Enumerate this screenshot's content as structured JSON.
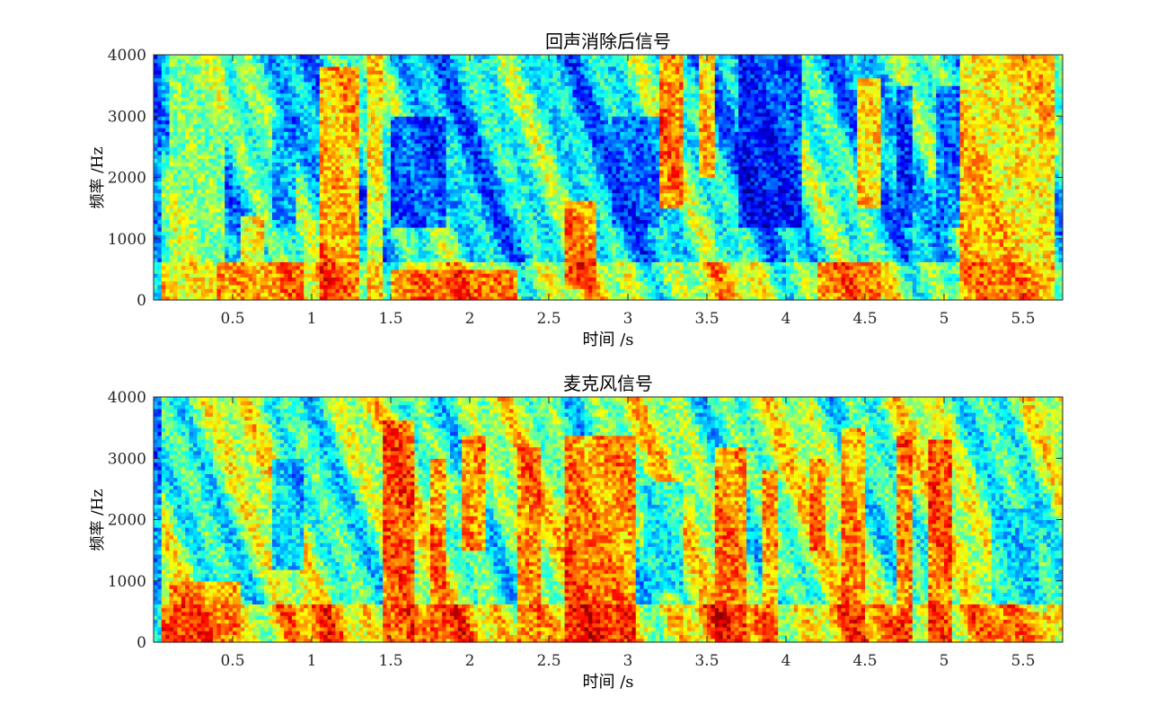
{
  "chart_data": [
    {
      "type": "heatmap",
      "title": "回声消除后信号",
      "xlabel": "时间 /s",
      "ylabel": "频率 /Hz",
      "xlim": [
        0.0,
        5.75
      ],
      "ylim": [
        0,
        4000
      ],
      "x_ticks": [
        0.5,
        1,
        1.5,
        2,
        2.5,
        3,
        3.5,
        4,
        4.5,
        5,
        5.5
      ],
      "x_tick_labels": [
        "0.5",
        "1",
        "1.5",
        "2",
        "2.5",
        "3",
        "3.5",
        "4",
        "4.5",
        "5",
        "5.5"
      ],
      "y_ticks": [
        0,
        1000,
        2000,
        3000,
        4000
      ],
      "y_tick_labels": [
        "0",
        "1000",
        "2000",
        "3000",
        "4000"
      ],
      "colormap": "jet",
      "energy_bands": [
        {
          "t0": 0.0,
          "t1": 0.05,
          "f0": 0,
          "f1": 4000,
          "level": 0.15
        },
        {
          "t0": 0.1,
          "t1": 0.45,
          "f0": 0,
          "f1": 4000,
          "level": 0.62
        },
        {
          "t0": 0.4,
          "t1": 0.95,
          "f0": 0,
          "f1": 600,
          "level": 0.85
        },
        {
          "t0": 0.55,
          "t1": 0.7,
          "f0": 600,
          "f1": 1400,
          "level": 0.8
        },
        {
          "t0": 0.75,
          "t1": 0.9,
          "f0": 1200,
          "f1": 3000,
          "level": 0.2
        },
        {
          "t0": 1.05,
          "t1": 1.3,
          "f0": 0,
          "f1": 3800,
          "level": 0.9
        },
        {
          "t0": 1.35,
          "t1": 1.45,
          "f0": 0,
          "f1": 4000,
          "level": 0.75
        },
        {
          "t0": 1.5,
          "t1": 1.85,
          "f0": 1200,
          "f1": 3000,
          "level": 0.08
        },
        {
          "t0": 1.5,
          "t1": 2.3,
          "f0": 0,
          "f1": 500,
          "level": 0.88
        },
        {
          "t0": 2.6,
          "t1": 2.8,
          "f0": 200,
          "f1": 1600,
          "level": 0.9
        },
        {
          "t0": 2.9,
          "t1": 3.2,
          "f0": 1200,
          "f1": 3000,
          "level": 0.15
        },
        {
          "t0": 3.2,
          "t1": 3.35,
          "f0": 1500,
          "f1": 4000,
          "level": 0.92
        },
        {
          "t0": 3.45,
          "t1": 3.55,
          "f0": 2000,
          "f1": 4000,
          "level": 0.88
        },
        {
          "t0": 3.7,
          "t1": 4.1,
          "f0": 1200,
          "f1": 4000,
          "level": 0.05
        },
        {
          "t0": 4.2,
          "t1": 4.6,
          "f0": 0,
          "f1": 600,
          "level": 0.85
        },
        {
          "t0": 4.45,
          "t1": 4.6,
          "f0": 1500,
          "f1": 3600,
          "level": 0.85
        },
        {
          "t0": 4.7,
          "t1": 4.8,
          "f0": 1200,
          "f1": 3500,
          "level": 0.1
        },
        {
          "t0": 4.95,
          "t1": 5.1,
          "f0": 1200,
          "f1": 3500,
          "level": 0.12
        },
        {
          "t0": 5.1,
          "t1": 5.7,
          "f0": 0,
          "f1": 4000,
          "level": 0.82
        }
      ]
    },
    {
      "type": "heatmap",
      "title": "麦克风信号",
      "xlabel": "时间 /s",
      "ylabel": "频率 /Hz",
      "xlim": [
        0.0,
        5.75
      ],
      "ylim": [
        0,
        4000
      ],
      "x_ticks": [
        0.5,
        1,
        1.5,
        2,
        2.5,
        3,
        3.5,
        4,
        4.5,
        5,
        5.5
      ],
      "x_tick_labels": [
        "0.5",
        "1",
        "1.5",
        "2",
        "2.5",
        "3",
        "3.5",
        "4",
        "4.5",
        "5",
        "5.5"
      ],
      "y_ticks": [
        0,
        1000,
        2000,
        3000,
        4000
      ],
      "y_tick_labels": [
        "0",
        "1000",
        "2000",
        "3000",
        "4000"
      ],
      "colormap": "jet",
      "energy_bands": [
        {
          "t0": 0.0,
          "t1": 0.05,
          "f0": 0,
          "f1": 4000,
          "level": 0.12
        },
        {
          "t0": 0.1,
          "t1": 0.55,
          "f0": 0,
          "f1": 1000,
          "level": 0.85
        },
        {
          "t0": 0.75,
          "t1": 0.95,
          "f0": 1200,
          "f1": 3000,
          "level": 0.2
        },
        {
          "t0": 1.45,
          "t1": 1.65,
          "f0": 0,
          "f1": 3600,
          "level": 0.92
        },
        {
          "t0": 1.75,
          "t1": 1.85,
          "f0": 0,
          "f1": 3000,
          "level": 0.85
        },
        {
          "t0": 1.95,
          "t1": 2.1,
          "f0": 1500,
          "f1": 3400,
          "level": 0.9
        },
        {
          "t0": 2.3,
          "t1": 2.45,
          "f0": 0,
          "f1": 3200,
          "level": 0.85
        },
        {
          "t0": 2.6,
          "t1": 3.05,
          "f0": 0,
          "f1": 3400,
          "level": 0.9
        },
        {
          "t0": 3.1,
          "t1": 3.35,
          "f0": 800,
          "f1": 2600,
          "level": 0.3
        },
        {
          "t0": 3.55,
          "t1": 3.75,
          "f0": 0,
          "f1": 3200,
          "level": 0.9
        },
        {
          "t0": 3.85,
          "t1": 3.95,
          "f0": 0,
          "f1": 2800,
          "level": 0.88
        },
        {
          "t0": 4.15,
          "t1": 4.25,
          "f0": 1500,
          "f1": 3000,
          "level": 0.85
        },
        {
          "t0": 4.35,
          "t1": 4.5,
          "f0": 0,
          "f1": 3500,
          "level": 0.85
        },
        {
          "t0": 4.7,
          "t1": 4.8,
          "f0": 0,
          "f1": 3400,
          "level": 0.92
        },
        {
          "t0": 4.9,
          "t1": 5.05,
          "f0": 0,
          "f1": 3300,
          "level": 0.92
        },
        {
          "t0": 5.3,
          "t1": 5.6,
          "f0": 600,
          "f1": 2200,
          "level": 0.3
        },
        {
          "t0": 5.2,
          "t1": 5.7,
          "f0": 0,
          "f1": 500,
          "level": 0.75
        }
      ]
    }
  ]
}
